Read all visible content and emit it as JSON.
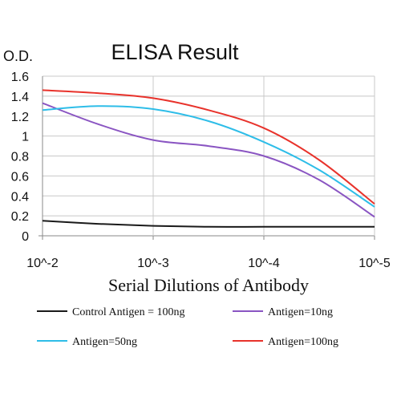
{
  "chart_data": {
    "type": "line",
    "title": "ELISA Result",
    "ylabel": "O.D.",
    "xlabel": "Serial Dilutions of Antibody",
    "x_tick_labels": [
      "10^-2",
      "10^-3",
      "10^-4",
      "10^-5"
    ],
    "y_tick_labels": [
      "0",
      "0.2",
      "0.4",
      "0.6",
      "0.8",
      "1",
      "1.2",
      "1.4",
      "1.6"
    ],
    "ylim": [
      0,
      1.6
    ],
    "y_step": 0.2,
    "grid": true,
    "legend_position": "bottom",
    "x": [
      0,
      0.5,
      1,
      1.5,
      2,
      2.5,
      3
    ],
    "series": [
      {
        "name": "Control Antigen = 100ng",
        "color": "#1a1a1a",
        "values": [
          0.15,
          0.12,
          0.1,
          0.09,
          0.09,
          0.09,
          0.09
        ]
      },
      {
        "name": "Antigen=10ng",
        "color": "#8a55c2",
        "values": [
          1.33,
          1.12,
          0.96,
          0.9,
          0.8,
          0.56,
          0.19
        ]
      },
      {
        "name": "Antigen=50ng",
        "color": "#2ebde8",
        "values": [
          1.26,
          1.3,
          1.27,
          1.15,
          0.94,
          0.66,
          0.29
        ]
      },
      {
        "name": "Antigen=100ng",
        "color": "#e8322b",
        "values": [
          1.46,
          1.43,
          1.38,
          1.26,
          1.08,
          0.76,
          0.32
        ]
      }
    ]
  }
}
